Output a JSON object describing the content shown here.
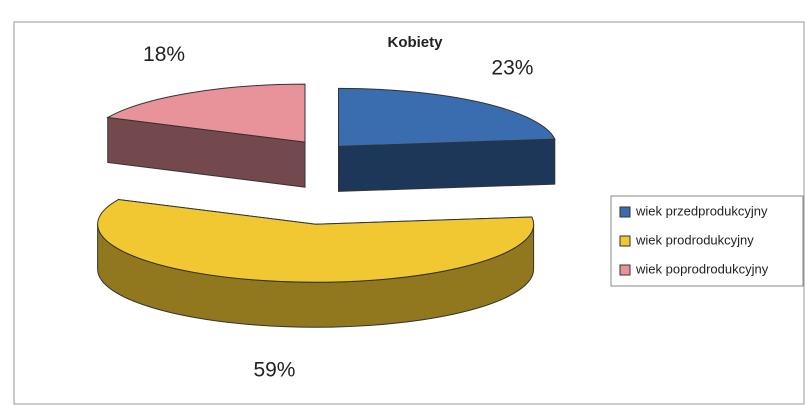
{
  "chart_data": {
    "type": "pie",
    "title": "Kobiety",
    "categories": [
      "wiek przedprodukcyjny",
      "wiek prodrodukcyjny",
      "wiek poprodrodukcyjny"
    ],
    "values": [
      23,
      59,
      18
    ],
    "value_labels": [
      "23%",
      "59%",
      "18%"
    ],
    "colors": [
      "#3a6db0",
      "#f2c832",
      "#e8929a"
    ],
    "legend": "right"
  }
}
